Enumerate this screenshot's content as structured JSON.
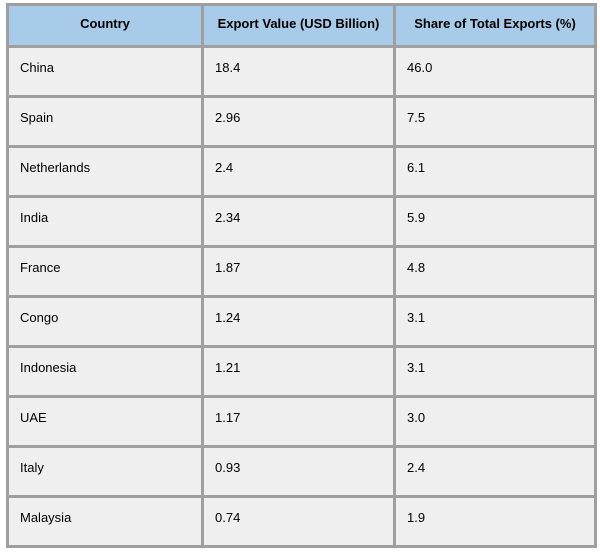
{
  "colors": {
    "header_bg": "#a8cbe9",
    "row_bg": "#f0efef",
    "border": "#9f9f9f",
    "text": "#000000"
  },
  "chart_data": {
    "type": "table",
    "columns": [
      "Country",
      "Export Value (USD Billion)",
      "Share of Total Exports (%)"
    ],
    "rows": [
      [
        "China",
        "18.4",
        "46.0"
      ],
      [
        "Spain",
        "2.96",
        "7.5"
      ],
      [
        "Netherlands",
        "2.4",
        "6.1"
      ],
      [
        "India",
        "2.34",
        "5.9"
      ],
      [
        "France",
        "1.87",
        "4.8"
      ],
      [
        "Congo",
        "1.24",
        "3.1"
      ],
      [
        "Indonesia",
        "1.21",
        "3.1"
      ],
      [
        "UAE",
        "1.17",
        "3.0"
      ],
      [
        "Italy",
        "0.93",
        "2.4"
      ],
      [
        "Malaysia",
        "0.74",
        "1.9"
      ]
    ]
  }
}
